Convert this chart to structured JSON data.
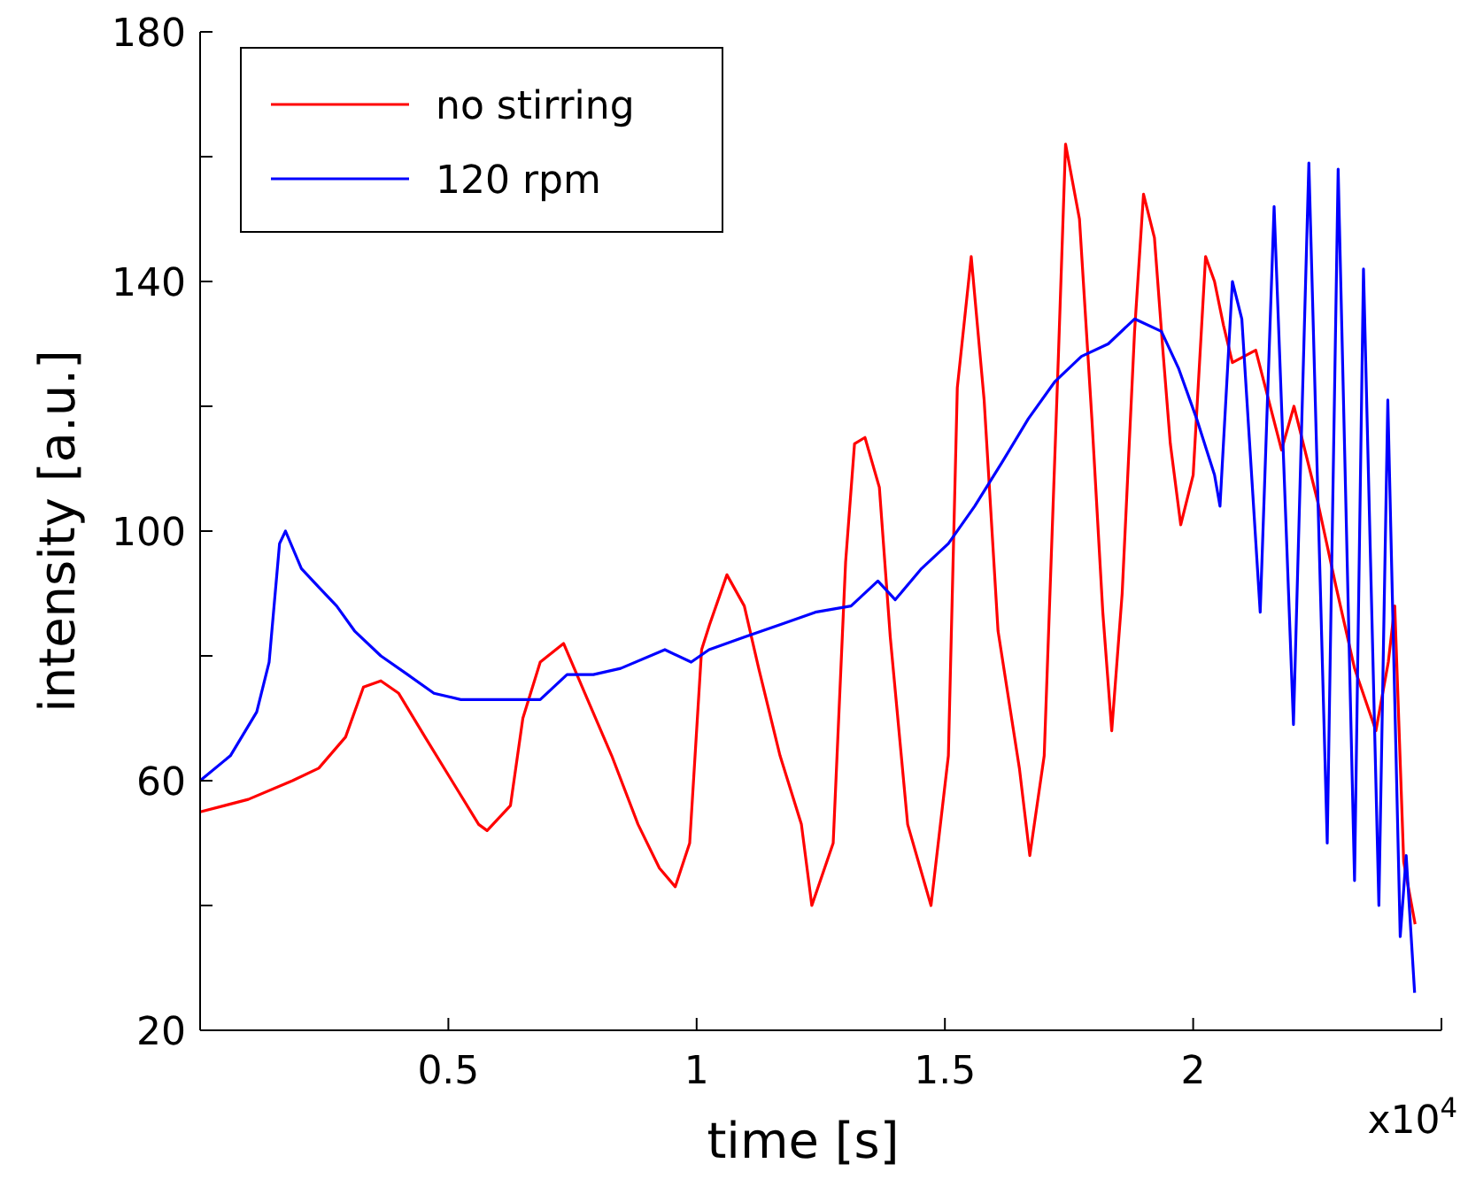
{
  "chart_data": {
    "type": "line",
    "xlabel": "time [s]",
    "ylabel": "intensity [a.u.]",
    "annotations": [
      "x10$^{4}$"
    ],
    "xlim": [
      0,
      2.5
    ],
    "xticks": [
      0.5,
      1,
      1.5,
      2,
      {
        "value": 2.5,
        "label": null
      }
    ],
    "ylim": [
      20,
      180
    ],
    "yticks": [
      20,
      {
        "value": 40,
        "label": null
      },
      60,
      {
        "value": 80,
        "label": null
      },
      100,
      {
        "value": 120,
        "label": null
      },
      140,
      {
        "value": 160,
        "label": null
      },
      180
    ],
    "grid": false,
    "legend": "top left",
    "marker": "none",
    "line_style": "solid",
    "series": [
      {
        "name": "no stirring",
        "color": "#ff0000",
        "x": [
          0,
          0.097,
          0.186,
          0.239,
          0.293,
          0.329,
          0.364,
          0.4,
          0.453,
          0.507,
          0.561,
          0.578,
          0.625,
          0.65,
          0.685,
          0.732,
          0.775,
          0.829,
          0.882,
          0.925,
          0.957,
          0.986,
          1.01,
          1.026,
          1.061,
          1.096,
          1.125,
          1.168,
          1.211,
          1.232,
          1.275,
          1.3,
          1.318,
          1.339,
          1.368,
          1.39,
          1.425,
          1.472,
          1.507,
          1.525,
          1.553,
          1.579,
          1.607,
          1.65,
          1.671,
          1.7,
          1.729,
          1.743,
          1.771,
          1.796,
          1.818,
          1.836,
          1.857,
          1.882,
          1.9,
          1.922,
          1.939,
          1.954,
          1.975,
          2.0,
          2.025,
          2.043,
          2.061,
          2.079,
          2.126,
          2.178,
          2.203,
          2.25,
          2.288,
          2.325,
          2.368,
          2.393,
          2.406,
          2.424,
          2.447
        ],
        "values": [
          55,
          57,
          60,
          62,
          67,
          75,
          76,
          74,
          67,
          60,
          53,
          52,
          56,
          70,
          79,
          82,
          74,
          64,
          53,
          46,
          43,
          50,
          81,
          85,
          93,
          88,
          78,
          64,
          53,
          40,
          50,
          95,
          114,
          115,
          107,
          83,
          53,
          40,
          64,
          123,
          144,
          121,
          84,
          62,
          48,
          64,
          129,
          162,
          150,
          118,
          87,
          68,
          90,
          132,
          154,
          147,
          129,
          114,
          101,
          109,
          144,
          140,
          133,
          127,
          129,
          113,
          120,
          105,
          91,
          78,
          68,
          79,
          88,
          47,
          37
        ]
      },
      {
        "name": "120 rpm",
        "color": "#0000ff",
        "x": [
          0,
          0.061,
          0.114,
          0.139,
          0.16,
          0.172,
          0.204,
          0.239,
          0.275,
          0.311,
          0.364,
          0.418,
          0.471,
          0.525,
          0.578,
          0.632,
          0.685,
          0.739,
          0.792,
          0.847,
          0.936,
          0.989,
          1.025,
          1.096,
          1.168,
          1.239,
          1.311,
          1.365,
          1.4,
          1.453,
          1.507,
          1.56,
          1.615,
          1.668,
          1.722,
          1.775,
          1.829,
          1.882,
          1.936,
          1.971,
          2.007,
          2.043,
          2.054,
          2.079,
          2.098,
          2.135,
          2.163,
          2.202,
          2.233,
          2.27,
          2.292,
          2.325,
          2.343,
          2.374,
          2.392,
          2.417,
          2.429,
          2.446
        ],
        "values": [
          60,
          64,
          71,
          79,
          98,
          100,
          94,
          91,
          88,
          84,
          80,
          77,
          74,
          73,
          73,
          73,
          73,
          77,
          77,
          78,
          81,
          79,
          81,
          83,
          85,
          87,
          88,
          92,
          89,
          94,
          98,
          104,
          111,
          118,
          124,
          128,
          130,
          134,
          132,
          126,
          118,
          109,
          104,
          140,
          134,
          87,
          152,
          69,
          159,
          50,
          158,
          44,
          142,
          40,
          121,
          35,
          48,
          26
        ]
      }
    ]
  }
}
